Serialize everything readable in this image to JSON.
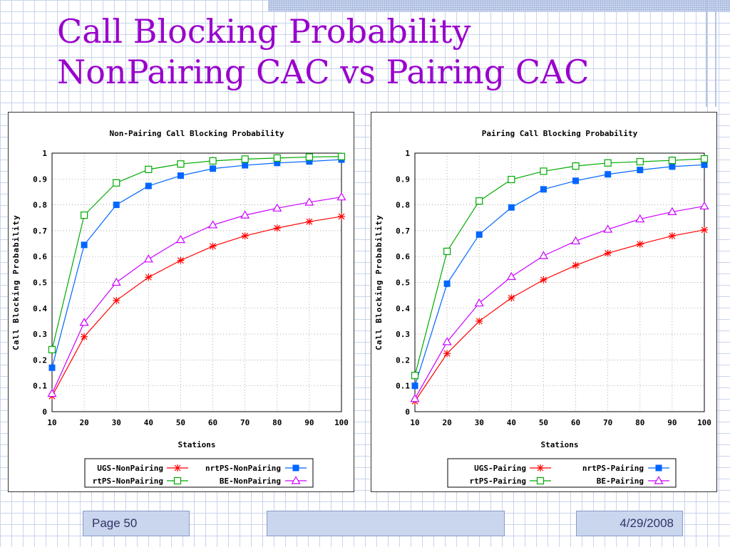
{
  "slide": {
    "title_line1": "Call Blocking Probability",
    "title_line2": "NonPairing CAC vs   Pairing CAC",
    "page_label": "Page 50",
    "date": "4/29/2008",
    "title_color": "#9900cc"
  },
  "chart_data": [
    {
      "type": "line",
      "title": "Non-Pairing Call Blocking Probability",
      "xlabel": "Stations",
      "ylabel": "Call Blocking Probability",
      "x": [
        10,
        20,
        30,
        40,
        50,
        60,
        70,
        80,
        90,
        100
      ],
      "xlim": [
        10,
        100
      ],
      "ylim": [
        0,
        1
      ],
      "yticks": [
        "0",
        "0.1",
        "0.2",
        "0.3",
        "0.4",
        "0.5",
        "0.6",
        "0.7",
        "0.8",
        "0.9",
        "1"
      ],
      "xticks": [
        "10",
        "20",
        "30",
        "40",
        "50",
        "60",
        "70",
        "80",
        "90",
        "100"
      ],
      "grid": true,
      "legend_position": "bottom",
      "series": [
        {
          "name": "UGS-NonPairing",
          "color": "#ff0000",
          "marker": "star",
          "values": [
            0.06,
            0.29,
            0.43,
            0.52,
            0.585,
            0.64,
            0.68,
            0.71,
            0.735,
            0.755
          ]
        },
        {
          "name": "nrtPS-NonPairing",
          "color": "#0066ff",
          "marker": "filled-square",
          "values": [
            0.17,
            0.645,
            0.8,
            0.873,
            0.913,
            0.94,
            0.953,
            0.962,
            0.968,
            0.975
          ]
        },
        {
          "name": "rtPS-NonPairing",
          "color": "#00aa00",
          "marker": "open-square",
          "values": [
            0.24,
            0.76,
            0.885,
            0.937,
            0.958,
            0.97,
            0.977,
            0.981,
            0.985,
            0.987
          ]
        },
        {
          "name": "BE-NonPairing",
          "color": "#cc00ff",
          "marker": "open-triangle",
          "values": [
            0.07,
            0.345,
            0.5,
            0.59,
            0.665,
            0.722,
            0.76,
            0.787,
            0.81,
            0.83
          ]
        }
      ]
    },
    {
      "type": "line",
      "title": "Pairing Call Blocking Probability",
      "xlabel": "Stations",
      "ylabel": "Call Blocking Probability",
      "x": [
        10,
        20,
        30,
        40,
        50,
        60,
        70,
        80,
        90,
        100
      ],
      "xlim": [
        10,
        100
      ],
      "ylim": [
        0,
        1
      ],
      "yticks": [
        "0",
        "0.1",
        "0.2",
        "0.3",
        "0.4",
        "0.5",
        "0.6",
        "0.7",
        "0.8",
        "0.9",
        "1"
      ],
      "xticks": [
        "10",
        "20",
        "30",
        "40",
        "50",
        "60",
        "70",
        "80",
        "90",
        "100"
      ],
      "grid": true,
      "legend_position": "bottom",
      "series": [
        {
          "name": "UGS-Pairing",
          "color": "#ff0000",
          "marker": "star",
          "values": [
            0.04,
            0.225,
            0.35,
            0.44,
            0.51,
            0.566,
            0.613,
            0.648,
            0.68,
            0.703
          ]
        },
        {
          "name": "nrtPS-Pairing",
          "color": "#0066ff",
          "marker": "filled-square",
          "values": [
            0.1,
            0.495,
            0.685,
            0.79,
            0.86,
            0.893,
            0.918,
            0.935,
            0.948,
            0.955
          ]
        },
        {
          "name": "rtPS-Pairing",
          "color": "#00aa00",
          "marker": "open-square",
          "values": [
            0.14,
            0.62,
            0.815,
            0.898,
            0.93,
            0.95,
            0.962,
            0.967,
            0.972,
            0.978
          ]
        },
        {
          "name": "BE-Pairing",
          "color": "#cc00ff",
          "marker": "open-triangle",
          "values": [
            0.05,
            0.27,
            0.42,
            0.522,
            0.603,
            0.66,
            0.705,
            0.745,
            0.773,
            0.795
          ]
        }
      ]
    }
  ]
}
